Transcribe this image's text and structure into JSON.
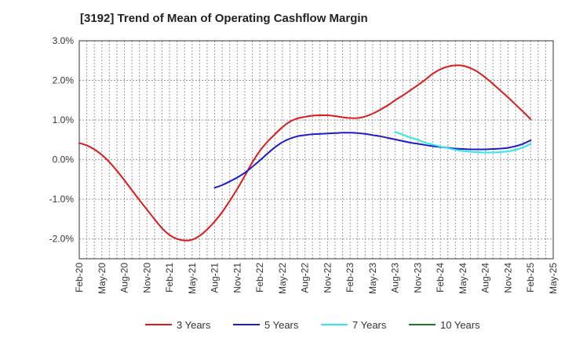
{
  "chart_data": {
    "type": "line",
    "title": "[3192]  Trend of Mean of Operating Cashflow Margin",
    "xlabel": "",
    "ylabel": "",
    "x_ticks": [
      "Feb-20",
      "May-20",
      "Aug-20",
      "Nov-20",
      "Feb-21",
      "May-21",
      "Aug-21",
      "Nov-21",
      "Feb-22",
      "May-22",
      "Aug-22",
      "Nov-22",
      "Feb-23",
      "May-23",
      "Aug-23",
      "Nov-23",
      "Feb-24",
      "May-24",
      "Aug-24",
      "Nov-24",
      "Feb-25",
      "May-25"
    ],
    "y_ticks": [
      "3.0%",
      "2.0%",
      "1.0%",
      "0.0%",
      "-1.0%",
      "-2.0%"
    ],
    "y_tick_values": [
      3.0,
      2.0,
      1.0,
      0.0,
      -1.0,
      -2.0
    ],
    "ylim": [
      -2.5,
      3.0
    ],
    "grid": true,
    "legend_position": "bottom",
    "series": [
      {
        "name": "3 Years",
        "color": "#dd1a1a",
        "x": [
          "Feb-20",
          "Mar-20",
          "Apr-20",
          "May-20",
          "Jun-20",
          "Jul-20",
          "Aug-20",
          "Sep-20",
          "Oct-20",
          "Nov-20",
          "Dec-20",
          "Jan-21",
          "Feb-21",
          "Mar-21",
          "Apr-21",
          "May-21",
          "Jun-21",
          "Jul-21",
          "Aug-21",
          "Sep-21",
          "Oct-21",
          "Nov-21",
          "Dec-21",
          "Jan-22",
          "Feb-22",
          "Mar-22",
          "Apr-22",
          "May-22",
          "Jun-22",
          "Jul-22",
          "Aug-22",
          "Sep-22",
          "Oct-22",
          "Nov-22",
          "Dec-22",
          "Jan-23",
          "Feb-23",
          "Mar-23",
          "Apr-23",
          "May-23",
          "Jun-23",
          "Jul-23",
          "Aug-23",
          "Sep-23",
          "Oct-23",
          "Nov-23",
          "Dec-23",
          "Jan-24",
          "Feb-24",
          "Mar-24",
          "Apr-24",
          "May-24",
          "Jun-24",
          "Jul-24",
          "Aug-24",
          "Sep-24",
          "Oct-24",
          "Nov-24",
          "Dec-24",
          "Jan-25",
          "Feb-25"
        ],
        "values": [
          0.42,
          0.36,
          0.26,
          0.12,
          -0.06,
          -0.28,
          -0.52,
          -0.77,
          -1.02,
          -1.26,
          -1.5,
          -1.73,
          -1.9,
          -2.0,
          -2.04,
          -2.02,
          -1.92,
          -1.76,
          -1.56,
          -1.32,
          -1.04,
          -0.74,
          -0.41,
          -0.07,
          0.22,
          0.45,
          0.64,
          0.82,
          0.96,
          1.04,
          1.08,
          1.11,
          1.12,
          1.12,
          1.1,
          1.07,
          1.05,
          1.05,
          1.09,
          1.16,
          1.26,
          1.37,
          1.5,
          1.62,
          1.75,
          1.88,
          2.02,
          2.17,
          2.28,
          2.35,
          2.38,
          2.37,
          2.31,
          2.21,
          2.07,
          1.91,
          1.74,
          1.57,
          1.39,
          1.21,
          1.02
        ]
      },
      {
        "name": "5 Years",
        "color": "#1c1cc8",
        "x": [
          "Aug-21",
          "Sep-21",
          "Oct-21",
          "Nov-21",
          "Dec-21",
          "Jan-22",
          "Feb-22",
          "Mar-22",
          "Apr-22",
          "May-22",
          "Jun-22",
          "Jul-22",
          "Aug-22",
          "Sep-22",
          "Oct-22",
          "Nov-22",
          "Dec-22",
          "Jan-23",
          "Feb-23",
          "Mar-23",
          "Apr-23",
          "May-23",
          "Jun-23",
          "Jul-23",
          "Aug-23",
          "Sep-23",
          "Oct-23",
          "Nov-23",
          "Dec-23",
          "Jan-24",
          "Feb-24",
          "Mar-24",
          "Apr-24",
          "May-24",
          "Jun-24",
          "Jul-24",
          "Aug-24",
          "Sep-24",
          "Oct-24",
          "Nov-24",
          "Dec-24",
          "Jan-25",
          "Feb-25"
        ],
        "values": [
          -0.71,
          -0.64,
          -0.55,
          -0.45,
          -0.33,
          -0.18,
          -0.02,
          0.15,
          0.31,
          0.44,
          0.53,
          0.59,
          0.62,
          0.64,
          0.65,
          0.66,
          0.67,
          0.68,
          0.68,
          0.67,
          0.65,
          0.62,
          0.59,
          0.55,
          0.51,
          0.47,
          0.43,
          0.4,
          0.37,
          0.34,
          0.32,
          0.3,
          0.28,
          0.27,
          0.26,
          0.26,
          0.26,
          0.27,
          0.28,
          0.3,
          0.34,
          0.4,
          0.49
        ]
      },
      {
        "name": "7 Years",
        "color": "#2ee8ee",
        "x": [
          "Aug-23",
          "Sep-23",
          "Oct-23",
          "Nov-23",
          "Dec-23",
          "Jan-24",
          "Feb-24",
          "Mar-24",
          "Apr-24",
          "May-24",
          "Jun-24",
          "Jul-24",
          "Aug-24",
          "Sep-24",
          "Oct-24",
          "Nov-24",
          "Dec-24",
          "Jan-25",
          "Feb-25"
        ],
        "values": [
          0.7,
          0.63,
          0.56,
          0.5,
          0.43,
          0.38,
          0.33,
          0.29,
          0.25,
          0.22,
          0.2,
          0.19,
          0.18,
          0.18,
          0.19,
          0.21,
          0.25,
          0.31,
          0.4
        ]
      },
      {
        "name": "10 Years",
        "color": "#1e7a1e",
        "x": [],
        "values": []
      }
    ]
  }
}
